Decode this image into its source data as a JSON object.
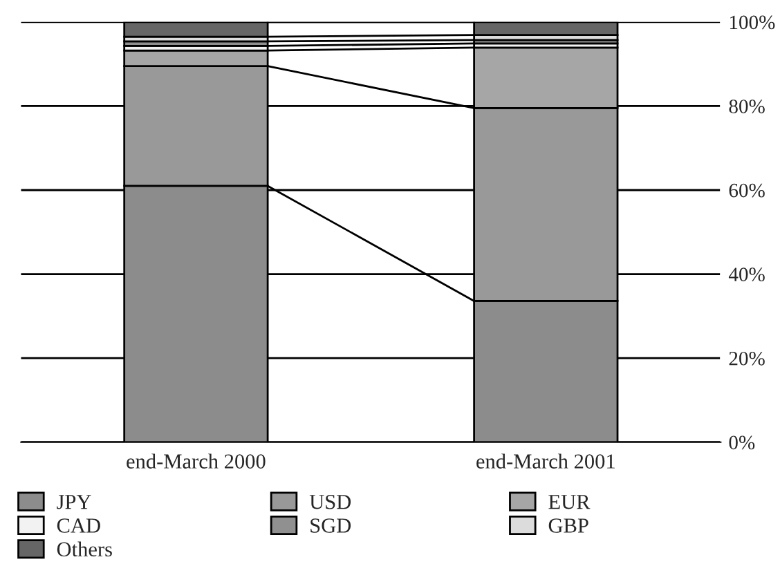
{
  "chart_data": {
    "type": "bar",
    "stacked": true,
    "categories": [
      "end-March 2000",
      "end-March 2001"
    ],
    "series": [
      {
        "name": "JPY",
        "color": "#8c8c8c",
        "values": [
          61.0,
          33.6
        ]
      },
      {
        "name": "USD",
        "color": "#999999",
        "values": [
          28.5,
          45.9
        ]
      },
      {
        "name": "EUR",
        "color": "#a6a6a6",
        "values": [
          3.7,
          14.4
        ]
      },
      {
        "name": "CAD",
        "color": "#f2f2f2",
        "values": [
          1.1,
          1.0
        ]
      },
      {
        "name": "SGD",
        "color": "#909090",
        "values": [
          1.1,
          0.8
        ]
      },
      {
        "name": "GBP",
        "color": "#dcdcdc",
        "values": [
          1.1,
          1.2
        ]
      },
      {
        "name": "Others",
        "color": "#666666",
        "values": [
          3.5,
          3.1
        ]
      }
    ],
    "ylim": [
      0,
      100
    ],
    "yticks": [
      {
        "value": 0,
        "label": "0%"
      },
      {
        "value": 20,
        "label": "20%"
      },
      {
        "value": 40,
        "label": "40%"
      },
      {
        "value": 60,
        "label": "60%"
      },
      {
        "value": 80,
        "label": "80%"
      },
      {
        "value": 100,
        "label": "100%"
      }
    ],
    "grid": "y",
    "legend": "bottom"
  }
}
